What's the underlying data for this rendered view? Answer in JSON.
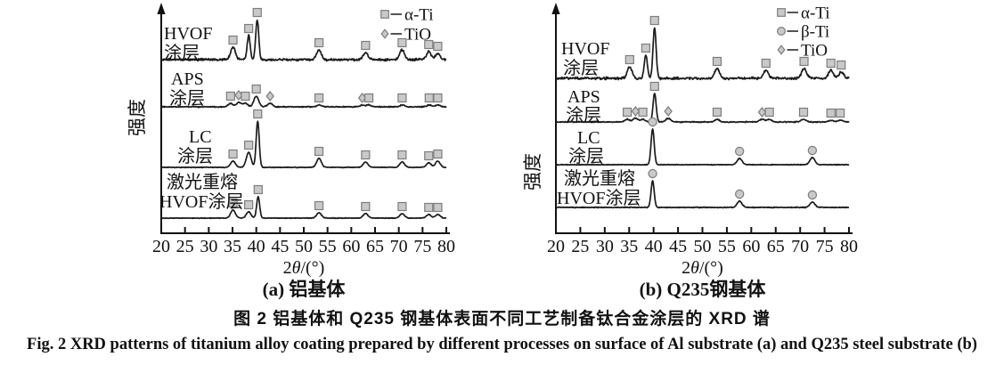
{
  "figure": {
    "caption_zh": "图 2  铝基体和 Q235 钢基体表面不同工艺制备钛合金涂层的 XRD 谱",
    "caption_en": "Fig. 2  XRD patterns of titanium alloy coating prepared by different processes on surface of Al substrate (a) and Q235 steel substrate (b)"
  },
  "colors": {
    "curve": "#1c1c1c",
    "axis": "#111111",
    "text": "#111111",
    "marker_fill": "#c9c9c9",
    "marker_stroke": "#7d7d7d",
    "background": "#ffffff"
  },
  "chart_data": [
    {
      "type": "line",
      "panel": "a",
      "title": "(a) 铝基体",
      "xlabel": "2θ/(°)",
      "ylabel": "强度",
      "xlim": [
        20,
        80
      ],
      "x_ticks": [
        20,
        25,
        30,
        35,
        40,
        45,
        50,
        55,
        60,
        65,
        70,
        75,
        80
      ],
      "y_axis": "unlabeled relative intensity, arrow axis",
      "grid": false,
      "legend_position": "top-right",
      "legend": [
        {
          "phase": "α-Ti",
          "marker": "square"
        },
        {
          "phase": "TiO",
          "marker": "diamond"
        }
      ],
      "series": [
        {
          "name": "HVOF 涂层",
          "label_lines": [
            "HVOF",
            "涂层"
          ],
          "noise": 1.5,
          "peaks": [
            {
              "two_theta": 35.1,
              "intensity": 14,
              "phase": "α-Ti"
            },
            {
              "two_theta": 38.4,
              "intensity": 27,
              "phase": "α-Ti"
            },
            {
              "two_theta": 40.2,
              "intensity": 45,
              "phase": "α-Ti"
            },
            {
              "two_theta": 53.2,
              "intensity": 11,
              "phase": "α-Ti"
            },
            {
              "two_theta": 63.0,
              "intensity": 8,
              "phase": "α-Ti"
            },
            {
              "two_theta": 70.7,
              "intensity": 11,
              "phase": "α-Ti"
            },
            {
              "two_theta": 76.3,
              "intensity": 9,
              "phase": "α-Ti"
            },
            {
              "two_theta": 78.2,
              "intensity": 7,
              "phase": "α-Ti"
            }
          ]
        },
        {
          "name": "APS 涂层",
          "label_lines": [
            "APS",
            "涂层"
          ],
          "noise": 0.7,
          "peaks": [
            {
              "two_theta": 34.6,
              "intensity": 4,
              "phase": "α-Ti"
            },
            {
              "two_theta": 36.3,
              "intensity": 5,
              "phase": "TiO"
            },
            {
              "two_theta": 37.7,
              "intensity": 4,
              "phase": "α-Ti"
            },
            {
              "two_theta": 40.0,
              "intensity": 12,
              "phase": "α-Ti"
            },
            {
              "two_theta": 42.9,
              "intensity": 4,
              "phase": "TiO"
            },
            {
              "two_theta": 53.2,
              "intensity": 2,
              "phase": "α-Ti"
            },
            {
              "two_theta": 62.3,
              "intensity": 2,
              "phase": "TiO"
            },
            {
              "two_theta": 63.7,
              "intensity": 2,
              "phase": "α-Ti"
            },
            {
              "two_theta": 70.7,
              "intensity": 2,
              "phase": "α-Ti"
            },
            {
              "two_theta": 76.4,
              "intensity": 2,
              "phase": "α-Ti"
            },
            {
              "two_theta": 78.2,
              "intensity": 2,
              "phase": "α-Ti"
            }
          ]
        },
        {
          "name": "LC 涂层",
          "label_lines": [
            "LC",
            "涂层"
          ],
          "noise": 0.5,
          "peaks": [
            {
              "two_theta": 35.1,
              "intensity": 7,
              "phase": "α-Ti"
            },
            {
              "two_theta": 38.4,
              "intensity": 17,
              "phase": "α-Ti"
            },
            {
              "two_theta": 40.3,
              "intensity": 52,
              "phase": "α-Ti"
            },
            {
              "two_theta": 53.2,
              "intensity": 10,
              "phase": "α-Ti"
            },
            {
              "two_theta": 63.0,
              "intensity": 6,
              "phase": "α-Ti"
            },
            {
              "two_theta": 70.7,
              "intensity": 6,
              "phase": "α-Ti"
            },
            {
              "two_theta": 76.3,
              "intensity": 5,
              "phase": "α-Ti"
            },
            {
              "two_theta": 78.2,
              "intensity": 7,
              "phase": "α-Ti"
            }
          ]
        },
        {
          "name": "激光重熔 HVOF涂层",
          "label_lines": [
            "激光重熔",
            "HVOF涂层"
          ],
          "noise": 0.5,
          "peaks": [
            {
              "two_theta": 35.1,
              "intensity": 9,
              "phase": "α-Ti"
            },
            {
              "two_theta": 38.4,
              "intensity": 7,
              "phase": "α-Ti"
            },
            {
              "two_theta": 40.4,
              "intensity": 24,
              "phase": "α-Ti"
            },
            {
              "two_theta": 53.2,
              "intensity": 6,
              "phase": "α-Ti"
            },
            {
              "two_theta": 63.0,
              "intensity": 5,
              "phase": "α-Ti"
            },
            {
              "two_theta": 70.7,
              "intensity": 5,
              "phase": "α-Ti"
            },
            {
              "two_theta": 76.3,
              "intensity": 4,
              "phase": "α-Ti"
            },
            {
              "two_theta": 78.2,
              "intensity": 4,
              "phase": "α-Ti"
            }
          ]
        }
      ]
    },
    {
      "type": "line",
      "panel": "b",
      "title": "(b) Q235钢基体",
      "xlabel": "2θ/(°)",
      "ylabel": "强度",
      "xlim": [
        20,
        80
      ],
      "x_ticks": [
        20,
        25,
        30,
        35,
        40,
        45,
        50,
        55,
        60,
        65,
        70,
        75,
        80
      ],
      "y_axis": "unlabeled relative intensity, arrow axis",
      "grid": false,
      "legend_position": "top-right",
      "legend": [
        {
          "phase": "α-Ti",
          "marker": "square"
        },
        {
          "phase": "β-Ti",
          "marker": "circle"
        },
        {
          "phase": "TiO",
          "marker": "diamond"
        }
      ],
      "series": [
        {
          "name": "HVOF 涂层",
          "label_lines": [
            "HVOF",
            "涂层"
          ],
          "noise": 1.6,
          "peaks": [
            {
              "two_theta": 35.1,
              "intensity": 13,
              "phase": "α-Ti"
            },
            {
              "two_theta": 38.4,
              "intensity": 26,
              "phase": "α-Ti"
            },
            {
              "two_theta": 40.2,
              "intensity": 57,
              "phase": "α-Ti"
            },
            {
              "two_theta": 53.0,
              "intensity": 11,
              "phase": "α-Ti"
            },
            {
              "two_theta": 63.0,
              "intensity": 9,
              "phase": "α-Ti"
            },
            {
              "two_theta": 70.8,
              "intensity": 11,
              "phase": "α-Ti"
            },
            {
              "two_theta": 76.3,
              "intensity": 9,
              "phase": "α-Ti"
            },
            {
              "two_theta": 78.4,
              "intensity": 7,
              "phase": "α-Ti"
            }
          ]
        },
        {
          "name": "APS 涂层",
          "label_lines": [
            "APS",
            "涂层"
          ],
          "noise": 0.7,
          "peaks": [
            {
              "two_theta": 34.6,
              "intensity": 3,
              "phase": "α-Ti"
            },
            {
              "two_theta": 36.3,
              "intensity": 4,
              "phase": "TiO"
            },
            {
              "two_theta": 37.8,
              "intensity": 3,
              "phase": "α-Ti"
            },
            {
              "two_theta": 40.2,
              "intensity": 32,
              "phase": "α-Ti"
            },
            {
              "two_theta": 43.0,
              "intensity": 4,
              "phase": "TiO"
            },
            {
              "two_theta": 53.0,
              "intensity": 3,
              "phase": "α-Ti"
            },
            {
              "two_theta": 62.2,
              "intensity": 3,
              "phase": "TiO"
            },
            {
              "two_theta": 63.7,
              "intensity": 3,
              "phase": "α-Ti"
            },
            {
              "two_theta": 70.7,
              "intensity": 3,
              "phase": "α-Ti"
            },
            {
              "two_theta": 76.3,
              "intensity": 2,
              "phase": "α-Ti"
            },
            {
              "two_theta": 78.2,
              "intensity": 2,
              "phase": "α-Ti"
            }
          ]
        },
        {
          "name": "LC 涂层",
          "label_lines": [
            "LC",
            "涂层"
          ],
          "noise": 0.5,
          "peaks": [
            {
              "two_theta": 39.8,
              "intensity": 40,
              "phase": "β-Ti"
            },
            {
              "two_theta": 57.6,
              "intensity": 7,
              "phase": "β-Ti"
            },
            {
              "two_theta": 72.5,
              "intensity": 8,
              "phase": "β-Ti"
            }
          ]
        },
        {
          "name": "激光重熔 HVOF涂层",
          "label_lines": [
            "激光重熔",
            "HVOF涂层"
          ],
          "noise": 0.6,
          "peaks": [
            {
              "two_theta": 39.8,
              "intensity": 30,
              "phase": "β-Ti"
            },
            {
              "two_theta": 57.6,
              "intensity": 7,
              "phase": "β-Ti"
            },
            {
              "two_theta": 72.5,
              "intensity": 6,
              "phase": "β-Ti"
            }
          ]
        }
      ]
    }
  ]
}
